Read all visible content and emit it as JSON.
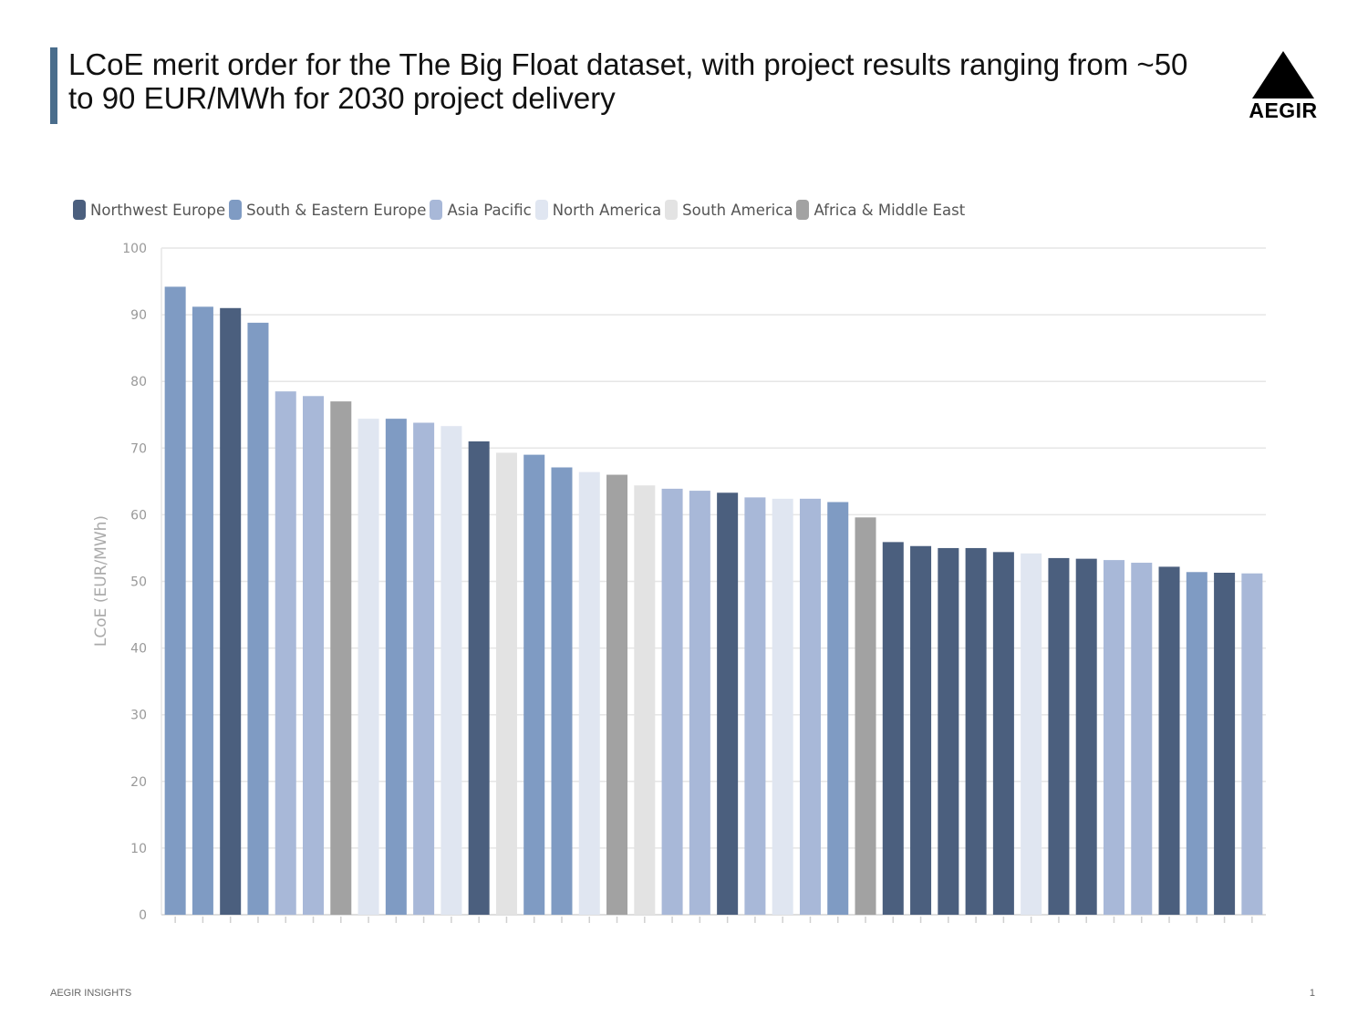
{
  "slide": {
    "title": "LCoE merit order for the The Big Float dataset, with project results ranging from ~50 to 90 EUR/MWh for 2030 project delivery",
    "logo_text": "AEGIR",
    "footer_left": "AEGIR INSIGHTS",
    "page_number": "1",
    "accent_color": "#4a6d8c"
  },
  "chart_data": {
    "type": "bar",
    "title": "",
    "xlabel": "",
    "ylabel": "LCoE (EUR/MWh)",
    "ylim": [
      0,
      100
    ],
    "yticks": [
      0,
      10,
      20,
      30,
      40,
      50,
      60,
      70,
      80,
      90,
      100
    ],
    "grid": true,
    "legend_position": "top-left",
    "legend": [
      {
        "name": "Northwest Europe",
        "color": "#4b5f7e"
      },
      {
        "name": "South & Eastern Europe",
        "color": "#7f9bc3"
      },
      {
        "name": "Asia Pacific",
        "color": "#a8b8d8"
      },
      {
        "name": "North America",
        "color": "#e0e6f1"
      },
      {
        "name": "South America",
        "color": "#e3e3e3"
      },
      {
        "name": "Africa & Middle East",
        "color": "#a2a2a2"
      }
    ],
    "bars": [
      {
        "region": "South & Eastern Europe",
        "value": 94.2
      },
      {
        "region": "South & Eastern Europe",
        "value": 91.2
      },
      {
        "region": "Northwest Europe",
        "value": 91.0
      },
      {
        "region": "South & Eastern Europe",
        "value": 88.8
      },
      {
        "region": "Asia Pacific",
        "value": 78.5
      },
      {
        "region": "Asia Pacific",
        "value": 77.8
      },
      {
        "region": "Africa & Middle East",
        "value": 77.0
      },
      {
        "region": "North America",
        "value": 74.4
      },
      {
        "region": "South & Eastern Europe",
        "value": 74.4
      },
      {
        "region": "Asia Pacific",
        "value": 73.8
      },
      {
        "region": "North America",
        "value": 73.3
      },
      {
        "region": "Northwest Europe",
        "value": 71.0
      },
      {
        "region": "South America",
        "value": 69.3
      },
      {
        "region": "South & Eastern Europe",
        "value": 69.0
      },
      {
        "region": "South & Eastern Europe",
        "value": 67.1
      },
      {
        "region": "North America",
        "value": 66.4
      },
      {
        "region": "Africa & Middle East",
        "value": 66.0
      },
      {
        "region": "South America",
        "value": 64.4
      },
      {
        "region": "Asia Pacific",
        "value": 63.9
      },
      {
        "region": "Asia Pacific",
        "value": 63.6
      },
      {
        "region": "Northwest Europe",
        "value": 63.3
      },
      {
        "region": "Asia Pacific",
        "value": 62.6
      },
      {
        "region": "North America",
        "value": 62.4
      },
      {
        "region": "Asia Pacific",
        "value": 62.4
      },
      {
        "region": "South & Eastern Europe",
        "value": 61.9
      },
      {
        "region": "Africa & Middle East",
        "value": 59.6
      },
      {
        "region": "Northwest Europe",
        "value": 55.9
      },
      {
        "region": "Northwest Europe",
        "value": 55.3
      },
      {
        "region": "Northwest Europe",
        "value": 55.0
      },
      {
        "region": "Northwest Europe",
        "value": 55.0
      },
      {
        "region": "Northwest Europe",
        "value": 54.4
      },
      {
        "region": "North America",
        "value": 54.2
      },
      {
        "region": "Northwest Europe",
        "value": 53.5
      },
      {
        "region": "Northwest Europe",
        "value": 53.4
      },
      {
        "region": "Asia Pacific",
        "value": 53.2
      },
      {
        "region": "Asia Pacific",
        "value": 52.8
      },
      {
        "region": "Northwest Europe",
        "value": 52.2
      },
      {
        "region": "South & Eastern Europe",
        "value": 51.4
      },
      {
        "region": "Northwest Europe",
        "value": 51.3
      },
      {
        "region": "Asia Pacific",
        "value": 51.2
      }
    ]
  }
}
